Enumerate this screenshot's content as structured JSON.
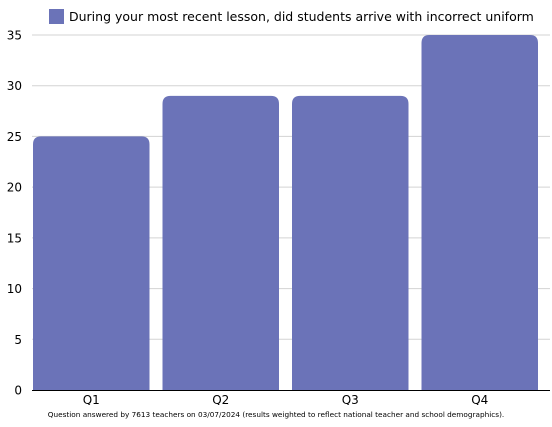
{
  "chart_data": {
    "type": "bar",
    "categories": [
      "Q1",
      "Q2",
      "Q3",
      "Q4"
    ],
    "series": [
      {
        "name": "During your most recent lesson, did students arrive with incorrect uniform",
        "values": [
          25,
          29,
          29,
          35
        ],
        "color": "#6b73b8"
      }
    ],
    "ylim": [
      0,
      35
    ],
    "yticks": [
      0,
      5,
      10,
      15,
      20,
      25,
      30,
      35
    ],
    "grid": true,
    "legend_position": "top",
    "xlabel": "",
    "ylabel": ""
  },
  "footnote": "Question answered by 7613 teachers on 03/07/2024 (results weighted to reflect national teacher and school demographics)."
}
